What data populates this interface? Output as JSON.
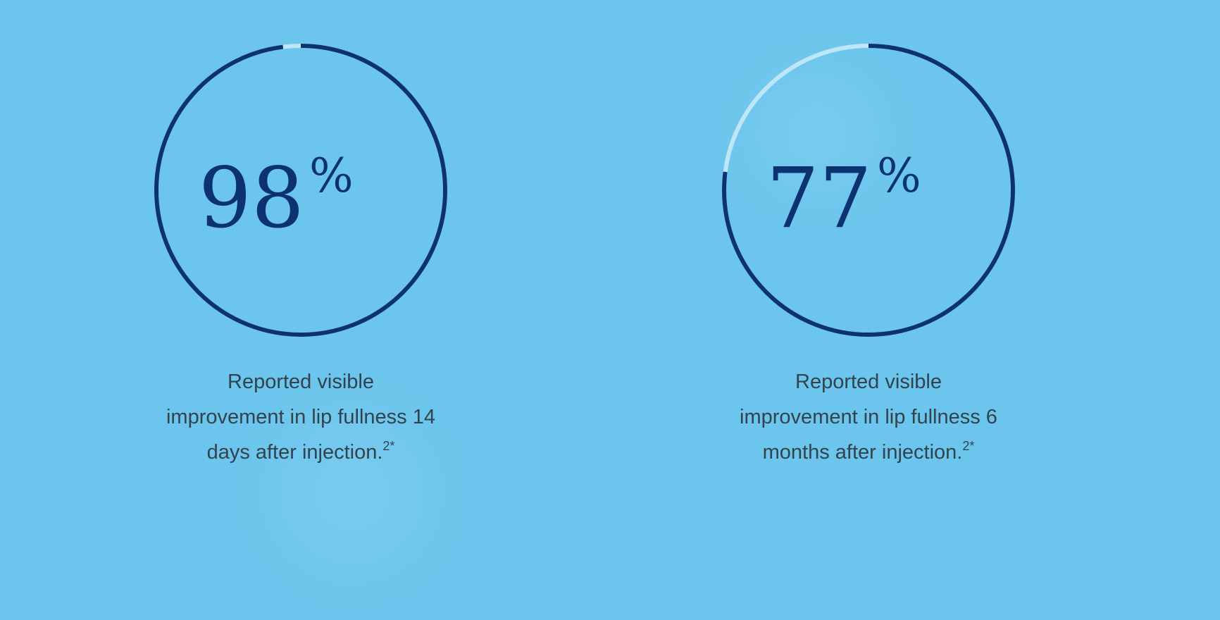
{
  "colors": {
    "background": "#6bc5ec",
    "progress": "#0c3272",
    "track": "#bfe6f8",
    "caption_text": "#33434d"
  },
  "chart_data": [
    {
      "type": "pie",
      "title": "",
      "value": 98,
      "max": 100,
      "value_label": "98",
      "unit_label": "%",
      "caption_lines": [
        "Reported visible",
        "improvement in lip fullness 14",
        "days after injection."
      ],
      "caption_reference": "2*"
    },
    {
      "type": "pie",
      "title": "",
      "value": 77,
      "max": 100,
      "value_label": "77",
      "unit_label": "%",
      "caption_lines": [
        "Reported visible",
        "improvement in lip fullness 6",
        "months after injection."
      ],
      "caption_reference": "2*"
    }
  ]
}
